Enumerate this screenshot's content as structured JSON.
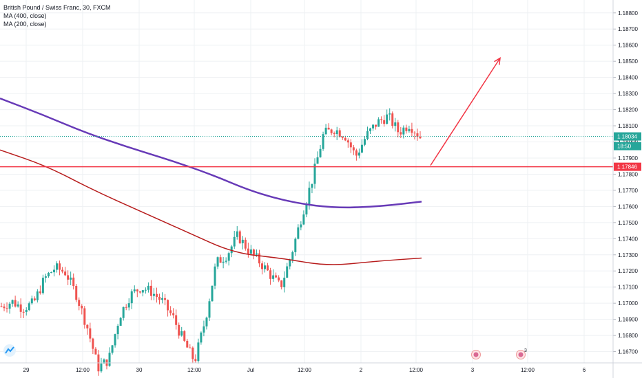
{
  "legend": {
    "symbol": "British Pound / Swiss Franc, 30, FXCM",
    "ma1": "MA (400, close)",
    "ma2": "MA (200, close)"
  },
  "price_labels": {
    "last_price": "1.18034",
    "countdown": "18:50",
    "level": "1.17846"
  },
  "events": [
    {
      "symbol": "flag-icon",
      "date": "3"
    },
    {
      "symbol": "flag-icon",
      "date": "3",
      "count": "3"
    }
  ],
  "colors": {
    "up": "#26a69a",
    "down": "#ef5350",
    "ma400": "#673ab7",
    "ma200": "#b71c1c",
    "level": "#f23645",
    "last_price": "#26a69a",
    "grid": "#eef0f3"
  },
  "chart_data": {
    "type": "candlestick",
    "ylim": [
      1.1663,
      1.1888
    ],
    "y_ticks": [
      "1.16700",
      "1.16800",
      "1.16900",
      "1.17000",
      "1.17100",
      "1.17200",
      "1.17300",
      "1.17400",
      "1.17500",
      "1.17600",
      "1.17700",
      "1.17800",
      "1.17900",
      "1.18000",
      "1.18100",
      "1.18200",
      "1.18300",
      "1.18400",
      "1.18500",
      "1.18600",
      "1.18700",
      "1.18800"
    ],
    "x_ticks": [
      "29",
      "12:00",
      "30",
      "12:00",
      "Jul",
      "12:00",
      "2",
      "12:00",
      "3",
      "12:00",
      "6"
    ],
    "horizontal_level": 1.17846,
    "last_price": 1.18034,
    "close_path": [
      1.1698,
      1.1701,
      1.1697,
      1.17,
      1.1715,
      1.1722,
      1.1719,
      1.1705,
      1.1685,
      1.166,
      1.1665,
      1.1692,
      1.1705,
      1.171,
      1.1707,
      1.1701,
      1.1691,
      1.1676,
      1.1664,
      1.169,
      1.1725,
      1.173,
      1.1742,
      1.1733,
      1.1726,
      1.1718,
      1.171,
      1.173,
      1.1755,
      1.1778,
      1.1805,
      1.1808,
      1.1804,
      1.1791,
      1.1804,
      1.1812,
      1.1816,
      1.1806,
      1.1811,
      1.1803
    ],
    "ma400": [
      1.1827,
      1.1817,
      1.1806,
      1.1797,
      1.1789,
      1.178,
      1.1769,
      1.1762,
      1.1759,
      1.176,
      1.1763
    ],
    "ma200": [
      1.1795,
      1.1785,
      1.177,
      1.1757,
      1.1744,
      1.1731,
      1.1728,
      1.1723,
      1.1726,
      1.1728
    ],
    "arrow": {
      "from": [
        1.17846
      ],
      "to": [
        1.1852
      ]
    }
  }
}
